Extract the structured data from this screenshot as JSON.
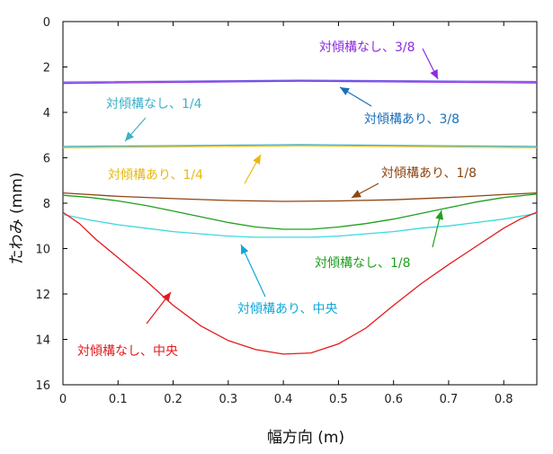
{
  "chart_data": {
    "type": "line",
    "xlabel": "幅方向 (m)",
    "ylabel": "たわみ (mm)",
    "xlim": [
      0,
      0.86
    ],
    "ylim": [
      0,
      16
    ],
    "y_inverted": true,
    "grid": false,
    "x_ticks": [
      "0",
      "0.1",
      "0.2",
      "0.3",
      "0.4",
      "0.5",
      "0.6",
      "0.7",
      "0.8"
    ],
    "y_ticks": [
      "0",
      "2",
      "4",
      "6",
      "8",
      "10",
      "12",
      "14",
      "16"
    ],
    "series": [
      {
        "name": "対傾構なし、3/8",
        "color": "#8b2be2",
        "x": [
          0,
          0.43,
          0.86
        ],
        "y": [
          2.72,
          2.62,
          2.7
        ]
      },
      {
        "name": "対傾構あり、3/8",
        "color": "#7a6ae8",
        "x": [
          0,
          0.43,
          0.86
        ],
        "y": [
          2.66,
          2.58,
          2.64
        ]
      },
      {
        "name": "対傾構なし、1/4",
        "color": "#3fb0c8",
        "x": [
          0,
          0.43,
          0.86
        ],
        "y": [
          5.5,
          5.42,
          5.5
        ]
      },
      {
        "name": "対傾構あり、1/4",
        "color": "#e8c020",
        "x": [
          0,
          0.43,
          0.86
        ],
        "y": [
          5.56,
          5.47,
          5.56
        ]
      },
      {
        "name": "対傾構あり、1/8",
        "color": "#8b4513",
        "x": [
          0,
          0.1,
          0.2,
          0.3,
          0.4,
          0.5,
          0.6,
          0.7,
          0.8,
          0.86
        ],
        "y": [
          7.55,
          7.7,
          7.8,
          7.88,
          7.92,
          7.9,
          7.85,
          7.75,
          7.62,
          7.55
        ]
      },
      {
        "name": "対傾構なし、1/8",
        "color": "#1ea01e",
        "x": [
          0,
          0.05,
          0.1,
          0.15,
          0.2,
          0.25,
          0.3,
          0.35,
          0.4,
          0.45,
          0.5,
          0.55,
          0.6,
          0.65,
          0.7,
          0.75,
          0.8,
          0.86
        ],
        "y": [
          7.65,
          7.75,
          7.9,
          8.1,
          8.35,
          8.6,
          8.85,
          9.05,
          9.15,
          9.15,
          9.05,
          8.9,
          8.7,
          8.45,
          8.2,
          7.95,
          7.75,
          7.6
        ]
      },
      {
        "name": "対傾構あり、中央",
        "color": "#3cd8dc",
        "x": [
          0,
          0.05,
          0.1,
          0.15,
          0.2,
          0.25,
          0.3,
          0.35,
          0.4,
          0.45,
          0.5,
          0.55,
          0.6,
          0.65,
          0.7,
          0.75,
          0.8,
          0.86
        ],
        "y": [
          8.5,
          8.75,
          8.95,
          9.1,
          9.25,
          9.35,
          9.45,
          9.5,
          9.5,
          9.5,
          9.45,
          9.35,
          9.25,
          9.1,
          9.0,
          8.85,
          8.7,
          8.45
        ]
      },
      {
        "name": "対傾構なし、中央",
        "color": "#e31a1c",
        "x": [
          0,
          0.03,
          0.06,
          0.1,
          0.15,
          0.2,
          0.25,
          0.3,
          0.35,
          0.4,
          0.45,
          0.5,
          0.55,
          0.6,
          0.65,
          0.7,
          0.75,
          0.8,
          0.83,
          0.86
        ],
        "y": [
          8.4,
          8.9,
          9.6,
          10.4,
          11.4,
          12.5,
          13.4,
          14.05,
          14.45,
          14.65,
          14.6,
          14.2,
          13.5,
          12.5,
          11.55,
          10.7,
          9.9,
          9.1,
          8.7,
          8.4
        ]
      }
    ],
    "annotations": [
      {
        "text": "対傾構なし、3/8",
        "color": "#8b2be2"
      },
      {
        "text": "対傾構なし、1/4",
        "color": "#3fb0c8"
      },
      {
        "text": "対傾構あり、3/8",
        "color": "#1a6fb8"
      },
      {
        "text": "対傾構あり、1/4",
        "color": "#e8b810"
      },
      {
        "text": "対傾構あり、1/8",
        "color": "#8b4513"
      },
      {
        "text": "対傾構なし、1/8",
        "color": "#1ea01e"
      },
      {
        "text": "対傾構あり、中央",
        "color": "#10a8d8"
      },
      {
        "text": "対傾構なし、中央",
        "color": "#e31a1c"
      }
    ]
  }
}
